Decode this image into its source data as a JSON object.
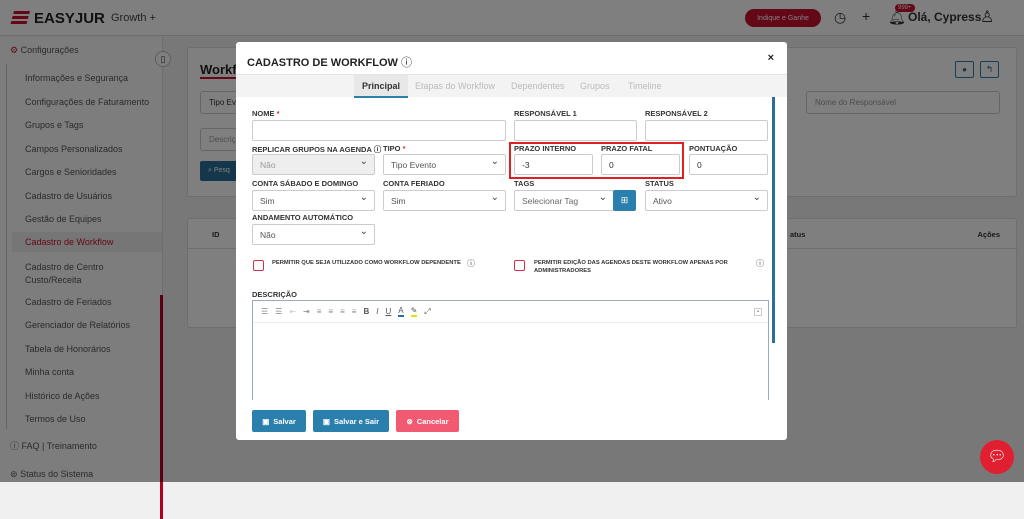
{
  "topbar": {
    "logo": "EASYJUR",
    "plan": "Growth +",
    "refer_button": "Indique e Ganhe",
    "notifications_badge": "999+",
    "user_greeting": "Olá, Cypress"
  },
  "sidebar": {
    "section": "Configurações",
    "items": [
      "Informações e Segurança",
      "Configurações de Faturamento",
      "Grupos e Tags",
      "Campos Personalizados",
      "Cargos e Senioridades",
      "Cadastro de Usuários",
      "Gestão de Equipes",
      "Cadastro de Workflow",
      "Cadastro de Centro Custo/Receita",
      "Cadastro de Feriados",
      "Gerenciador de Relatórios",
      "Tabela de Honorários",
      "Minha conta",
      "Histórico de Ações",
      "Termos de Uso"
    ],
    "active_item": "Cadastro de Workflow",
    "faq": "FAQ | Treinamento",
    "status": "Status do Sistema"
  },
  "background_page": {
    "title": "Workflo",
    "filter_tipo": "Tipo Ev",
    "filter_descricao_placeholder": "Descriç",
    "responsavel_placeholder": "Nome do Responsável",
    "search_button": "Pesq",
    "table_headers": {
      "id": "ID",
      "status": "atus",
      "actions": "Ações"
    }
  },
  "modal": {
    "title": "CADASTRO DE WORKFLOW",
    "close": "×",
    "tabs": [
      {
        "label": "Principal",
        "active": true
      },
      {
        "label": "Etapas do Workflow",
        "active": false
      },
      {
        "label": "Dependentes",
        "active": false
      },
      {
        "label": "Grupos",
        "active": false
      },
      {
        "label": "Timeline",
        "active": false
      }
    ],
    "fields": {
      "nome": {
        "label": "NOME",
        "value": ""
      },
      "responsavel1": {
        "label": "RESPONSÁVEL 1",
        "value": ""
      },
      "responsavel2": {
        "label": "RESPONSÁVEL 2",
        "value": ""
      },
      "replicar": {
        "label": "REPLICAR GRUPOS NA AGENDA",
        "value": "Não"
      },
      "tipo": {
        "label": "TIPO",
        "value": "Tipo Evento"
      },
      "prazo_interno": {
        "label": "PRAZO INTERNO",
        "value": "-3"
      },
      "prazo_fatal": {
        "label": "PRAZO FATAL",
        "value": "0"
      },
      "pontuacao": {
        "label": "PONTUAÇÃO",
        "value": "0"
      },
      "conta_sabado": {
        "label": "CONTA SÁBADO E DOMINGO",
        "value": "Sim"
      },
      "conta_feriado": {
        "label": "CONTA FERIADO",
        "value": "Sim"
      },
      "tags": {
        "label": "TAGS",
        "value": "Selecionar Tag"
      },
      "status": {
        "label": "STATUS",
        "value": "Ativo"
      },
      "andamento": {
        "label": "ANDAMENTO AUTOMÁTICO",
        "value": "Não"
      }
    },
    "checkbox_dependente": "PERMITIR QUE SEJA UTILIZADO COMO WORKFLOW DEPENDENTE",
    "checkbox_admin": "PERMITIR EDIÇÃO DAS AGENDAS DESTE WORKFLOW APENAS POR ADMINISTRADORES",
    "descricao_label": "DESCRIÇÃO",
    "required_mark": "*",
    "buttons": {
      "save": "Salvar",
      "save_exit": "Salvar e Sair",
      "cancel": "Cancelar"
    }
  },
  "colors": {
    "brand": "#c8102e",
    "primary": "#2b7fad",
    "cancel": "#f25a72",
    "highlight": "#e02020"
  }
}
